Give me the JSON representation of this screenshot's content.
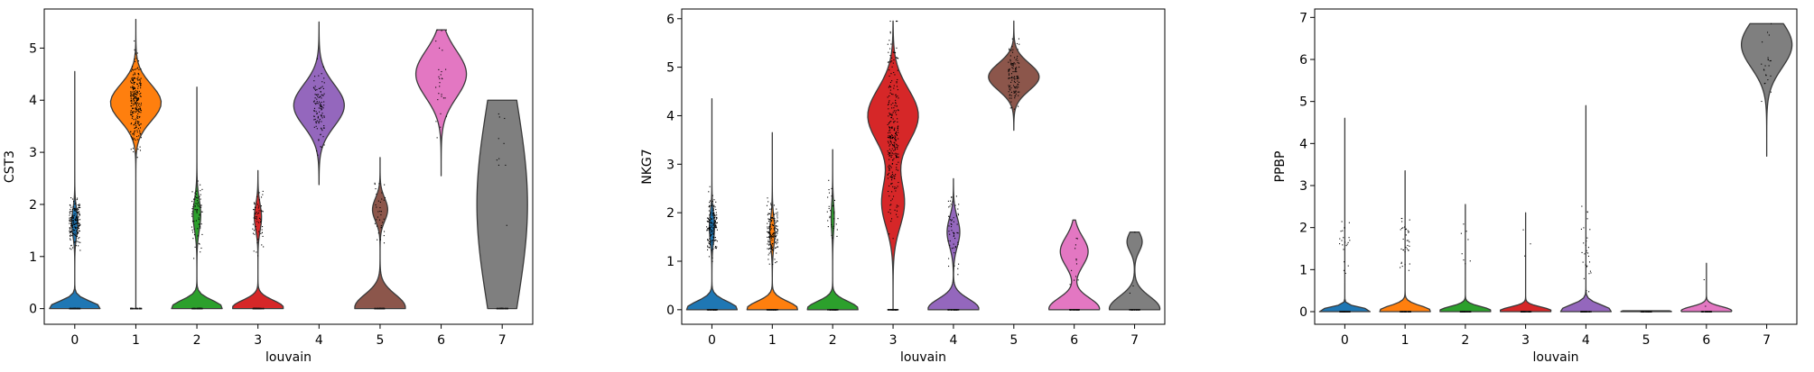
{
  "chart_data": [
    {
      "type": "violin",
      "xlabel": "louvain",
      "ylabel": "CST3",
      "ylim": [
        -0.3,
        5.75
      ],
      "yticks": [
        0,
        1,
        2,
        3,
        4,
        5
      ],
      "categories": [
        "0",
        "1",
        "2",
        "3",
        "4",
        "5",
        "6",
        "7"
      ],
      "colors": [
        "#1f77b4",
        "#ff7f0e",
        "#2ca02c",
        "#d62728",
        "#9467bd",
        "#8c564b",
        "#e377c2",
        "#7f7f7f"
      ],
      "violins": [
        {
          "min": 0,
          "max": 4.55,
          "modes": [
            {
              "center": 0.02,
              "sd": 0.12,
              "weight": 1.0
            },
            {
              "center": 1.65,
              "sd": 0.25,
              "weight": 0.12
            }
          ],
          "points_center": 1.65,
          "points_sd": 0.22,
          "points_count": 180
        },
        {
          "min": 0,
          "max": 5.55,
          "modes": [
            {
              "center": 3.95,
              "sd": 0.35,
              "weight": 1.0
            }
          ],
          "points_center": 3.9,
          "points_sd": 0.38,
          "points_count": 260
        },
        {
          "min": 0,
          "max": 4.25,
          "modes": [
            {
              "center": 0.02,
              "sd": 0.14,
              "weight": 1.0
            },
            {
              "center": 1.8,
              "sd": 0.3,
              "weight": 0.15
            }
          ],
          "points_center": 1.8,
          "points_sd": 0.32,
          "points_count": 70
        },
        {
          "min": 0,
          "max": 2.65,
          "modes": [
            {
              "center": 0.02,
              "sd": 0.14,
              "weight": 1.0
            },
            {
              "center": 1.75,
              "sd": 0.25,
              "weight": 0.14
            }
          ],
          "points_center": 1.72,
          "points_sd": 0.28,
          "points_count": 60
        },
        {
          "min": 2.38,
          "max": 5.5,
          "modes": [
            {
              "center": 3.9,
              "sd": 0.4,
              "weight": 1.0
            }
          ],
          "points_center": 3.9,
          "points_sd": 0.38,
          "points_count": 110
        },
        {
          "min": 0,
          "max": 2.9,
          "modes": [
            {
              "center": 0.02,
              "sd": 0.25,
              "weight": 1.0
            },
            {
              "center": 1.9,
              "sd": 0.22,
              "weight": 0.3
            }
          ],
          "points_center": 1.8,
          "points_sd": 0.4,
          "points_count": 35
        },
        {
          "min": 2.55,
          "max": 5.35,
          "modes": [
            {
              "center": 4.5,
              "sd": 0.45,
              "weight": 1.0
            }
          ],
          "points_center": 4.4,
          "points_sd": 0.45,
          "points_count": 28
        },
        {
          "min": 0,
          "max": 4.0,
          "modes": [
            {
              "center": 2.0,
              "sd": 1.9,
              "weight": 1.0
            }
          ],
          "points_center": 2.5,
          "points_sd": 1.0,
          "points_count": 10
        }
      ]
    },
    {
      "type": "violin",
      "xlabel": "louvain",
      "ylabel": "NKG7",
      "ylim": [
        -0.3,
        6.2
      ],
      "yticks": [
        0,
        1,
        2,
        3,
        4,
        5,
        6
      ],
      "categories": [
        "0",
        "1",
        "2",
        "3",
        "4",
        "5",
        "6",
        "7"
      ],
      "colors": [
        "#1f77b4",
        "#ff7f0e",
        "#2ca02c",
        "#d62728",
        "#9467bd",
        "#8c564b",
        "#e377c2",
        "#7f7f7f"
      ],
      "violins": [
        {
          "min": 0,
          "max": 4.35,
          "modes": [
            {
              "center": 0.02,
              "sd": 0.15,
              "weight": 1.0
            },
            {
              "center": 1.7,
              "sd": 0.3,
              "weight": 0.1
            }
          ],
          "points_center": 1.7,
          "points_sd": 0.25,
          "points_count": 160
        },
        {
          "min": 0,
          "max": 3.65,
          "modes": [
            {
              "center": 0.02,
              "sd": 0.15,
              "weight": 1.0
            },
            {
              "center": 1.6,
              "sd": 0.3,
              "weight": 0.1
            }
          ],
          "points_center": 1.6,
          "points_sd": 0.3,
          "points_count": 150
        },
        {
          "min": 0,
          "max": 3.3,
          "modes": [
            {
              "center": 0.02,
              "sd": 0.15,
              "weight": 1.0
            },
            {
              "center": 1.9,
              "sd": 0.3,
              "weight": 0.06
            }
          ],
          "points_center": 1.9,
          "points_sd": 0.35,
          "points_count": 30
        },
        {
          "min": 0,
          "max": 5.95,
          "modes": [
            {
              "center": 4.0,
              "sd": 0.55,
              "weight": 1.0
            },
            {
              "center": 2.2,
              "sd": 0.5,
              "weight": 0.45
            }
          ],
          "points_center": 3.7,
          "points_sd": 0.9,
          "points_count": 280
        },
        {
          "min": 0,
          "max": 2.7,
          "modes": [
            {
              "center": 0.02,
              "sd": 0.2,
              "weight": 1.0
            },
            {
              "center": 1.6,
              "sd": 0.3,
              "weight": 0.25
            }
          ],
          "points_center": 1.6,
          "points_sd": 0.4,
          "points_count": 55
        },
        {
          "min": 3.7,
          "max": 5.95,
          "modes": [
            {
              "center": 4.8,
              "sd": 0.28,
              "weight": 1.0
            }
          ],
          "points_center": 4.8,
          "points_sd": 0.3,
          "points_count": 120
        },
        {
          "min": 0,
          "max": 1.85,
          "modes": [
            {
              "center": 0.02,
              "sd": 0.22,
              "weight": 1.0
            },
            {
              "center": 1.2,
              "sd": 0.3,
              "weight": 0.55
            }
          ],
          "points_center": 0.9,
          "points_sd": 0.4,
          "points_count": 12
        },
        {
          "min": 0,
          "max": 1.6,
          "modes": [
            {
              "center": 0.02,
              "sd": 0.25,
              "weight": 1.0
            },
            {
              "center": 1.4,
              "sd": 0.2,
              "weight": 0.3
            }
          ],
          "points_center": 0.8,
          "points_sd": 0.4,
          "points_count": 4
        }
      ]
    },
    {
      "type": "violin",
      "xlabel": "louvain",
      "ylabel": "PPBP",
      "ylim": [
        -0.3,
        7.2
      ],
      "yticks": [
        0,
        1,
        2,
        3,
        4,
        5,
        6,
        7
      ],
      "categories": [
        "0",
        "1",
        "2",
        "3",
        "4",
        "5",
        "6",
        "7"
      ],
      "colors": [
        "#1f77b4",
        "#ff7f0e",
        "#2ca02c",
        "#d62728",
        "#9467bd",
        "#8c564b",
        "#e377c2",
        "#7f7f7f"
      ],
      "violins": [
        {
          "min": 0,
          "max": 4.6,
          "modes": [
            {
              "center": 0.02,
              "sd": 0.08,
              "weight": 1.0
            }
          ],
          "points_center": 1.6,
          "points_sd": 0.3,
          "points_count": 22
        },
        {
          "min": 0,
          "max": 3.35,
          "modes": [
            {
              "center": 0.02,
              "sd": 0.12,
              "weight": 1.0
            }
          ],
          "points_center": 1.6,
          "points_sd": 0.35,
          "points_count": 35
        },
        {
          "min": 0,
          "max": 2.55,
          "modes": [
            {
              "center": 0.02,
              "sd": 0.1,
              "weight": 1.0
            }
          ],
          "points_center": 1.7,
          "points_sd": 0.4,
          "points_count": 8
        },
        {
          "min": 0,
          "max": 2.35,
          "modes": [
            {
              "center": 0.02,
              "sd": 0.09,
              "weight": 1.0
            }
          ],
          "points_center": 1.8,
          "points_sd": 0.3,
          "points_count": 3
        },
        {
          "min": 0,
          "max": 4.9,
          "modes": [
            {
              "center": 0.02,
              "sd": 0.14,
              "weight": 1.0
            }
          ],
          "points_center": 1.4,
          "points_sd": 0.6,
          "points_count": 30
        },
        {
          "min": 0,
          "max": 0.02,
          "modes": [
            {
              "center": 0.0,
              "sd": 0.05,
              "weight": 1.0
            }
          ],
          "points_center": 0.0,
          "points_sd": 0.0,
          "points_count": 0
        },
        {
          "min": 0,
          "max": 1.15,
          "modes": [
            {
              "center": 0.02,
              "sd": 0.1,
              "weight": 1.0
            }
          ],
          "points_center": 0.5,
          "points_sd": 0.3,
          "points_count": 2
        },
        {
          "min": 3.7,
          "max": 6.85,
          "modes": [
            {
              "center": 6.35,
              "sd": 0.55,
              "weight": 1.0
            }
          ],
          "points_center": 6.0,
          "points_sd": 0.5,
          "points_count": 22
        }
      ]
    }
  ]
}
